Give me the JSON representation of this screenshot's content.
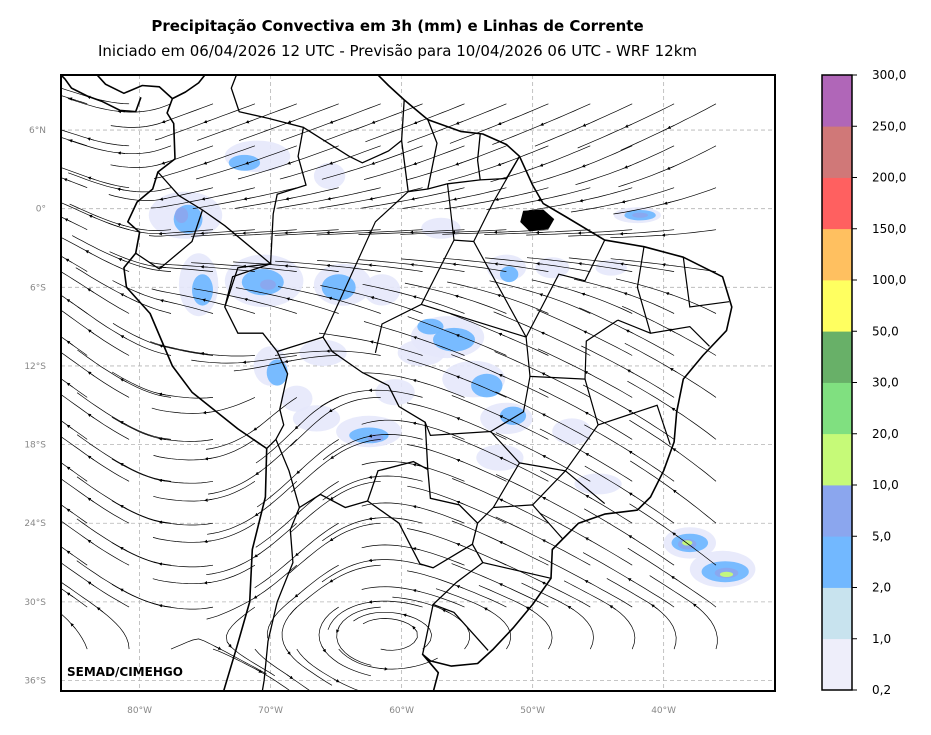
{
  "title": "Precipitação Convectiva em 3h (mm) e Linhas de Corrente",
  "subtitle": "Iniciado em 06/04/2026 12 UTC - Previsão para 10/04/2026 06 UTC - WRF 12km",
  "credit": "SEMAD/CIMEHGO",
  "map": {
    "lon_range": [
      -86,
      -31.5
    ],
    "lat_range": [
      -36.8,
      10.2
    ],
    "lat_ticks": [
      {
        "value": 6,
        "label": "6°N"
      },
      {
        "value": 0,
        "label": "0°"
      },
      {
        "value": -6,
        "label": "6°S"
      },
      {
        "value": -12,
        "label": "12°S"
      },
      {
        "value": -18,
        "label": "18°S"
      },
      {
        "value": -24,
        "label": "24°S"
      },
      {
        "value": -30,
        "label": "30°S"
      },
      {
        "value": -36,
        "label": "36°S"
      }
    ],
    "lon_ticks": [
      {
        "value": -80,
        "label": "80°W"
      },
      {
        "value": -70,
        "label": "70°W"
      },
      {
        "value": -60,
        "label": "60°W"
      },
      {
        "value": -50,
        "label": "50°W"
      },
      {
        "value": -40,
        "label": "40°W"
      }
    ]
  },
  "colorbar": {
    "levels": [
      "0,2",
      "1,0",
      "2,0",
      "5,0",
      "10,0",
      "20,0",
      "30,0",
      "50,0",
      "100,0",
      "150,0",
      "200,0",
      "250,0",
      "300,0"
    ],
    "colors": [
      "#eeeefa",
      "#c8e3ee",
      "#72b8ff",
      "#8ba6ee",
      "#c6fa78",
      "#80e080",
      "#68b068",
      "#ffff60",
      "#ffc060",
      "#ff6060",
      "#d07878",
      "#b066b8"
    ]
  },
  "colors": {
    "precip_light": "#e6e8fb",
    "precip_moderate": "#72b8ff",
    "precip_heavy": "#8ba6ee",
    "precip_intense": "#c6fa78",
    "coast": "#000000",
    "grid": "#b4b4b4"
  }
}
